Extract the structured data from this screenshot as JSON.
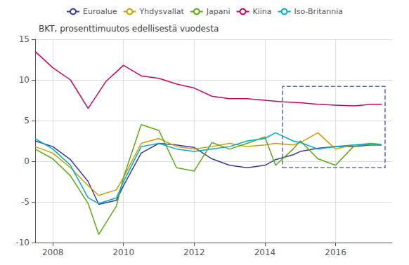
{
  "chart_data": {
    "type": "line",
    "title": "BKT, prosenttimuutos edellisestä vuodesta",
    "xlim": [
      2007.5,
      2017.6
    ],
    "xticks": [
      2008,
      2010,
      2012,
      2014,
      2016
    ],
    "ylim": [
      -10,
      15
    ],
    "yticks": [
      -10,
      -5,
      0,
      5,
      10,
      15
    ],
    "grid": true,
    "series": [
      {
        "name": "Euroalue",
        "color": "#3a3a9c",
        "x": [
          2007.5,
          2008.0,
          2008.5,
          2009.0,
          2009.3,
          2009.8,
          2010.0,
          2010.5,
          2011.0,
          2011.5,
          2012.0,
          2012.5,
          2013.0,
          2013.5,
          2014.0,
          2014.3,
          2014.8,
          2015.0,
          2015.5,
          2016.0,
          2016.5,
          2017.0,
          2017.3
        ],
        "values": [
          2.5,
          1.8,
          0.2,
          -2.5,
          -5.3,
          -4.8,
          -3.0,
          1.0,
          2.2,
          2.0,
          1.7,
          0.3,
          -0.5,
          -0.8,
          -0.5,
          0.2,
          0.8,
          1.2,
          1.6,
          1.8,
          1.8,
          2.0,
          2.0
        ]
      },
      {
        "name": "Yhdysvallat",
        "color": "#c8a000",
        "x": [
          2007.5,
          2008.0,
          2008.5,
          2009.0,
          2009.3,
          2009.8,
          2010.0,
          2010.5,
          2011.0,
          2011.5,
          2012.0,
          2012.5,
          2013.0,
          2013.5,
          2014.0,
          2014.3,
          2014.8,
          2015.0,
          2015.5,
          2016.0,
          2016.5,
          2017.0,
          2017.3
        ],
        "values": [
          1.8,
          1.0,
          -0.8,
          -3.0,
          -4.2,
          -3.5,
          -2.0,
          2.2,
          2.8,
          1.8,
          1.5,
          1.8,
          2.2,
          1.8,
          2.0,
          2.2,
          2.0,
          2.3,
          3.5,
          1.5,
          2.0,
          2.2,
          2.1
        ]
      },
      {
        "name": "Japani",
        "color": "#5aaa10",
        "x": [
          2007.5,
          2008.0,
          2008.5,
          2009.0,
          2009.3,
          2009.8,
          2010.0,
          2010.5,
          2011.0,
          2011.5,
          2012.0,
          2012.5,
          2013.0,
          2013.5,
          2014.0,
          2014.3,
          2014.8,
          2015.0,
          2015.5,
          2016.0,
          2016.5,
          2017.0,
          2017.3
        ],
        "values": [
          1.5,
          0.3,
          -1.8,
          -5.2,
          -9.0,
          -5.5,
          -2.0,
          4.5,
          3.8,
          -0.8,
          -1.2,
          2.3,
          1.5,
          2.2,
          3.0,
          -0.5,
          1.5,
          2.5,
          0.3,
          -0.5,
          1.8,
          2.2,
          2.0
        ]
      },
      {
        "name": "Kiina",
        "color": "#cc0066",
        "x": [
          2007.5,
          2008.0,
          2008.5,
          2009.0,
          2009.5,
          2010.0,
          2010.5,
          2011.0,
          2011.5,
          2012.0,
          2012.5,
          2013.0,
          2013.5,
          2014.0,
          2014.5,
          2015.0,
          2015.5,
          2016.0,
          2016.5,
          2017.0,
          2017.3
        ],
        "values": [
          13.5,
          11.5,
          10.0,
          6.5,
          9.8,
          11.8,
          10.5,
          10.2,
          9.5,
          9.0,
          8.0,
          7.7,
          7.7,
          7.5,
          7.3,
          7.2,
          7.0,
          6.9,
          6.8,
          7.0,
          7.0
        ]
      },
      {
        "name": "Iso-Britannia",
        "color": "#00aacc",
        "x": [
          2007.5,
          2008.0,
          2008.5,
          2009.0,
          2009.3,
          2009.8,
          2010.0,
          2010.5,
          2011.0,
          2011.5,
          2012.0,
          2012.5,
          2013.0,
          2013.5,
          2014.0,
          2014.3,
          2014.8,
          2015.0,
          2015.5,
          2016.0,
          2016.5,
          2017.0,
          2017.3
        ],
        "values": [
          2.8,
          1.5,
          -0.5,
          -4.5,
          -5.2,
          -4.5,
          -2.5,
          1.8,
          2.2,
          1.5,
          1.2,
          1.5,
          1.8,
          2.5,
          2.8,
          3.5,
          2.5,
          2.3,
          1.5,
          1.8,
          2.0,
          2.0,
          2.0
        ]
      }
    ],
    "dashed_box": {
      "x0": 2014.5,
      "x1": 2017.4,
      "y0": -0.8,
      "y1": 9.2,
      "color": "#5566bb",
      "line_style": "dashed"
    }
  }
}
